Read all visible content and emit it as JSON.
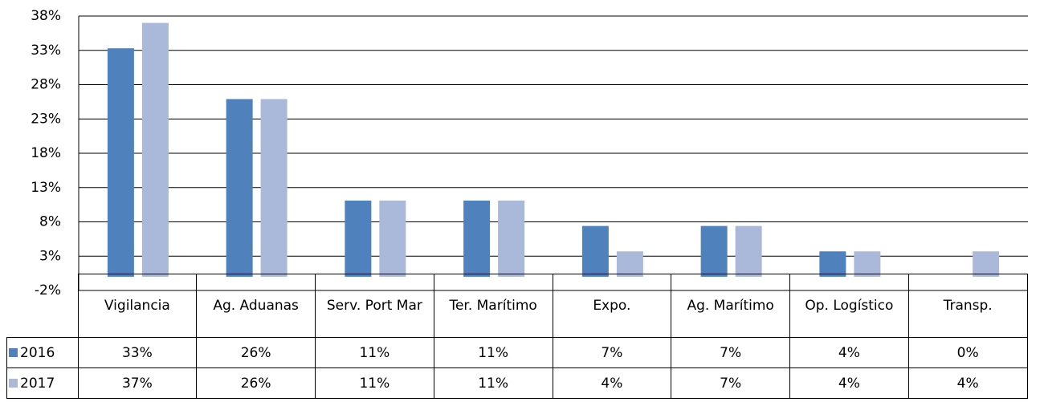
{
  "chart_data": {
    "type": "bar",
    "categories": [
      "Vigilancia",
      "Ag. Aduanas",
      "Serv. Port Mar",
      "Ter. Marítimo",
      "Expo.",
      "Ag. Marítimo",
      "Op. Logístico",
      "Transp."
    ],
    "series": [
      {
        "name": "2016",
        "color": "#4f81bd",
        "values": [
          33.3,
          25.9,
          11.1,
          11.1,
          7.4,
          7.4,
          3.7,
          0
        ],
        "value_labels": [
          "33%",
          "26%",
          "11%",
          "11%",
          "7%",
          "7%",
          "4%",
          "0%"
        ]
      },
      {
        "name": "2017",
        "color": "#aab9d9",
        "values": [
          37.0,
          25.9,
          11.1,
          11.1,
          3.7,
          7.4,
          3.7,
          3.7
        ],
        "value_labels": [
          "37%",
          "26%",
          "11%",
          "11%",
          "4%",
          "7%",
          "4%",
          "4%"
        ]
      }
    ],
    "ylim": [
      -2,
      38
    ],
    "yticks": [
      {
        "value": -2,
        "label": "-2%"
      },
      {
        "value": 3,
        "label": "3%"
      },
      {
        "value": 8,
        "label": "8%"
      },
      {
        "value": 13,
        "label": "13%"
      },
      {
        "value": 18,
        "label": "18%"
      },
      {
        "value": 23,
        "label": "23%"
      },
      {
        "value": 28,
        "label": "28%"
      },
      {
        "value": 33,
        "label": "33%"
      },
      {
        "value": 38,
        "label": "38%"
      }
    ],
    "grid": true
  }
}
